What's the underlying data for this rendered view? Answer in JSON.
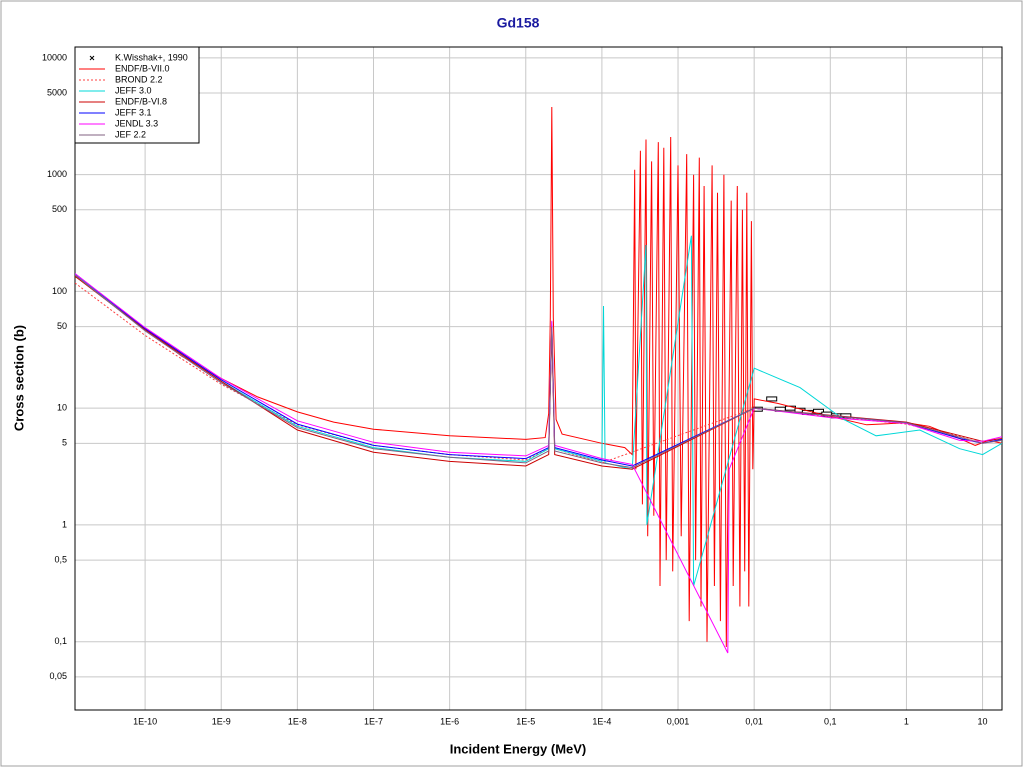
{
  "chart_data": {
    "type": "line",
    "title": "Gd158",
    "x_label": "Incident Energy (MeV)",
    "y_label": "Cross section (b)",
    "xscale": "log",
    "yscale": "log",
    "grid": true,
    "legend": "upper left",
    "xlim": [
      1.2e-11,
      18
    ],
    "ylim": [
      0.026,
      12400
    ],
    "xticks": [
      {
        "value": 1e-10,
        "label": "1E-10"
      },
      {
        "value": 1e-09,
        "label": "1E-9"
      },
      {
        "value": 1e-08,
        "label": "1E-8"
      },
      {
        "value": 1e-07,
        "label": "1E-7"
      },
      {
        "value": 1e-06,
        "label": "1E-6"
      },
      {
        "value": 1e-05,
        "label": "1E-5"
      },
      {
        "value": 0.0001,
        "label": "1E-4"
      },
      {
        "value": 0.001,
        "label": "0,001"
      },
      {
        "value": 0.01,
        "label": "0,01"
      },
      {
        "value": 0.1,
        "label": "0,1"
      },
      1,
      10
    ],
    "yticks": [
      10000,
      5000,
      1000,
      500,
      100,
      50,
      10,
      5,
      1,
      {
        "value": 0.5,
        "label": "0,5"
      },
      {
        "value": 0.1,
        "label": "0,1"
      },
      {
        "value": 0.05,
        "label": "0,05"
      }
    ],
    "series": [
      {
        "name": "K.Wisshak+, 1990",
        "type": "scatter",
        "marker": "x",
        "color": "#000000",
        "x": [
          0.011,
          0.017,
          0.022,
          0.03,
          0.04,
          0.05,
          0.07,
          0.09,
          0.12,
          0.16
        ],
        "values": [
          9.8,
          12,
          9.8,
          10,
          9.6,
          9.2,
          9.4,
          8.9,
          8.6,
          8.6
        ]
      },
      {
        "name": "ENDF/B-VII.0",
        "color": "#ff0000",
        "x": [
          1.2e-11,
          3e-11,
          1e-10,
          3e-10,
          1e-09,
          3e-09,
          1e-08,
          3e-08,
          1e-07,
          1e-06,
          1e-05,
          1.8e-05,
          2e-05,
          2.1e-05,
          2.2e-05,
          2.3e-05,
          2.5e-05,
          3e-05,
          0.0001,
          0.0002,
          0.00025,
          0.00027,
          0.00028,
          0.00032,
          0.00034,
          0.00038,
          0.0004,
          0.00045,
          0.00048,
          0.00055,
          0.00058,
          0.00065,
          0.0007,
          0.0008,
          0.00085,
          0.001,
          0.0011,
          0.0013,
          0.0014,
          0.0016,
          0.0017,
          0.0019,
          0.002,
          0.0022,
          0.0024,
          0.0028,
          0.003,
          0.0033,
          0.0036,
          0.004,
          0.0043,
          0.005,
          0.0053,
          0.006,
          0.0065,
          0.007,
          0.0075,
          0.008,
          0.0085,
          0.0092,
          0.0096,
          0.01,
          0.02,
          0.05,
          0.1,
          0.3,
          1,
          2,
          5,
          8,
          12,
          18
        ],
        "values": [
          135,
          88,
          48,
          28,
          18,
          12.5,
          9.3,
          7.6,
          6.6,
          5.8,
          5.4,
          5.6,
          9,
          60,
          3800,
          60,
          8,
          6,
          5,
          4.6,
          4,
          1100,
          3,
          1600,
          1.5,
          2000,
          0.8,
          1300,
          1.2,
          1900,
          0.3,
          1700,
          0.5,
          2100,
          0.4,
          1200,
          0.8,
          1500,
          0.15,
          1000,
          0.5,
          1400,
          0.2,
          800,
          0.1,
          1200,
          0.3,
          700,
          0.15,
          1000,
          0.09,
          600,
          0.3,
          800,
          0.2,
          500,
          0.4,
          700,
          0.2,
          400,
          3,
          12,
          11,
          9.5,
          8.5,
          7.2,
          7.5,
          7,
          5.5,
          4.8,
          5.3,
          5
        ]
      },
      {
        "name": "BROND 2.2",
        "color": "#ff4040",
        "dash": true,
        "x": [
          1.2e-11,
          1e-10,
          1e-09,
          1e-08,
          1e-07,
          1e-06,
          1e-05,
          2e-05,
          2.2e-05,
          2.4e-05,
          0.0001,
          0.01,
          0.1,
          1,
          10,
          18
        ],
        "values": [
          118,
          42,
          16,
          7.2,
          4.8,
          4,
          3.6,
          4.5,
          50,
          4.5,
          3.4,
          10,
          8.5,
          7.3,
          5.2,
          5.3
        ]
      },
      {
        "name": "JEFF 3.0",
        "color": "#00d8d8",
        "x": [
          1.2e-11,
          1e-10,
          1e-09,
          1e-08,
          1e-07,
          1e-06,
          1e-05,
          2e-05,
          2.2e-05,
          2.4e-05,
          0.0001,
          0.000105,
          0.00011,
          0.00025,
          0.00038,
          0.00039,
          0.0015,
          0.0016,
          0.01,
          0.04,
          0.15,
          0.4,
          1.5,
          5,
          10,
          18
        ],
        "values": [
          140,
          48,
          17,
          7,
          4.6,
          3.8,
          3.5,
          4.5,
          55,
          4.5,
          3.5,
          75,
          3.4,
          3,
          250,
          1,
          300,
          0.3,
          22,
          15,
          8,
          5.8,
          6.5,
          4.5,
          4,
          5
        ]
      },
      {
        "name": "ENDF/B-VI.8",
        "color": "#cc0000",
        "x": [
          1.2e-11,
          1e-10,
          1e-09,
          1e-08,
          1e-07,
          1e-06,
          1e-05,
          2e-05,
          2.2e-05,
          2.4e-05,
          0.0001,
          0.00025,
          0.01,
          0.1,
          1,
          10,
          18
        ],
        "values": [
          135,
          47,
          17,
          6.5,
          4.2,
          3.5,
          3.2,
          4,
          45,
          4,
          3.2,
          3,
          10,
          8.7,
          7.6,
          5.2,
          5.5
        ]
      },
      {
        "name": "JEFF 3.1",
        "color": "#0000ff",
        "x": [
          1.2e-11,
          1e-10,
          1e-09,
          1e-08,
          1e-07,
          1e-06,
          1e-05,
          2e-05,
          2.2e-05,
          2.4e-05,
          0.0001,
          0.00025,
          0.01,
          0.1,
          1,
          5,
          10,
          18
        ],
        "values": [
          142,
          48,
          17.5,
          7.3,
          4.8,
          4,
          3.7,
          4.6,
          52,
          4.6,
          3.6,
          3.2,
          10,
          8.6,
          7.5,
          5.5,
          5,
          5.4
        ]
      },
      {
        "name": "JENDL 3.3",
        "color": "#ff00ff",
        "x": [
          1.2e-11,
          1e-10,
          1e-09,
          1e-08,
          1e-07,
          1e-06,
          1e-05,
          2e-05,
          2.2e-05,
          2.4e-05,
          0.0001,
          0.00025,
          0.0045,
          0.0047,
          0.01,
          0.1,
          1,
          5,
          10,
          18
        ],
        "values": [
          142,
          49,
          18,
          7.8,
          5.1,
          4.2,
          3.9,
          4.8,
          56,
          4.8,
          3.7,
          3.3,
          0.08,
          3,
          10,
          8.3,
          7.4,
          5.3,
          5.2,
          5.7
        ]
      },
      {
        "name": "JEF 2.2",
        "color": "#806080",
        "x": [
          1.2e-11,
          1e-10,
          1e-09,
          1e-08,
          1e-07,
          1e-06,
          1e-05,
          2e-05,
          2.2e-05,
          2.4e-05,
          0.0001,
          0.00025,
          0.01,
          0.1,
          1,
          10,
          18
        ],
        "values": [
          138,
          46,
          16.5,
          6.8,
          4.5,
          3.8,
          3.4,
          4.3,
          50,
          4.3,
          3.4,
          3.1,
          10,
          8.6,
          7.5,
          5,
          5.3
        ]
      }
    ]
  }
}
